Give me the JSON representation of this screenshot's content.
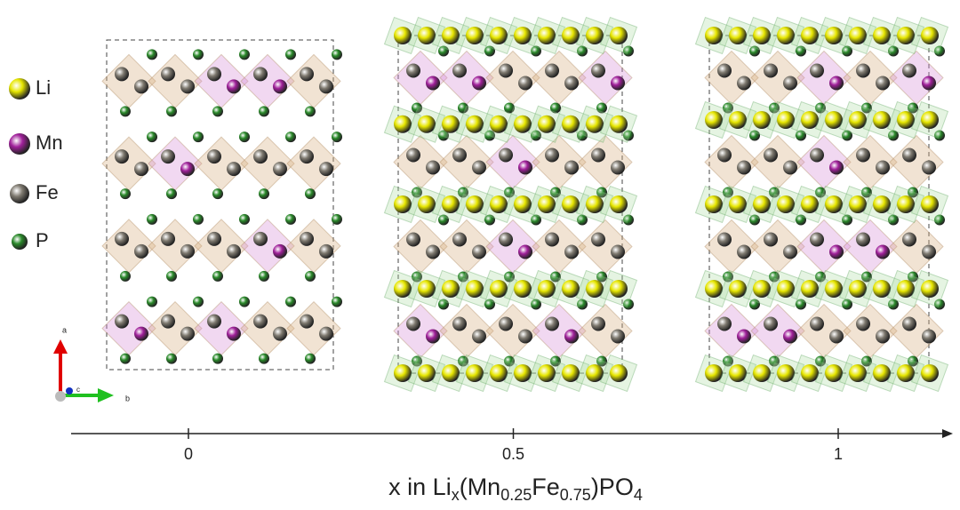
{
  "legend": [
    {
      "label": "Li",
      "color": "#e6e600"
    },
    {
      "label": "Mn",
      "color": "#a0209a"
    },
    {
      "label": "Fe",
      "color": "#7f7a70"
    },
    {
      "label": "P",
      "color": "#2a8a2a"
    }
  ],
  "crystal_axes": {
    "a": "a",
    "b": "b",
    "c": "c"
  },
  "axis": {
    "ticks": [
      0,
      0.5,
      1
    ],
    "title": [
      {
        "text": "x in Li"
      },
      {
        "text": "x",
        "sub": true
      },
      {
        "text": "(Mn"
      },
      {
        "text": "0.25",
        "sub": true
      },
      {
        "text": "Fe"
      },
      {
        "text": "0.75",
        "sub": true
      },
      {
        "text": ")PO"
      },
      {
        "text": "4",
        "sub": true
      }
    ]
  }
}
